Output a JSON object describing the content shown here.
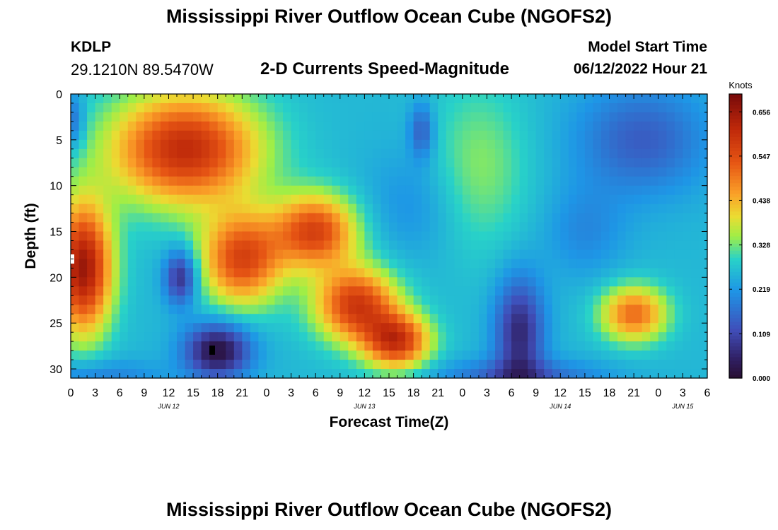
{
  "header": {
    "title": "Mississippi River Outflow Ocean Cube (NGOFS2)",
    "station_id": "KDLP",
    "station_coords": "29.1210N  89.5470W",
    "plot_title": "2-D Currents Speed-Magnitude",
    "model_start_label": "Model Start Time",
    "model_start_value": "06/12/2022 Hour 21"
  },
  "footer": {
    "title": "Mississippi River Outflow Ocean Cube (NGOFS2)"
  },
  "chart_data": {
    "type": "heatmap",
    "title": "2-D Currents Speed-Magnitude",
    "xlabel": "Forecast Time(Z)",
    "ylabel": "Depth (ft)",
    "x_range_hours": [
      0,
      78
    ],
    "ylim": [
      0,
      31
    ],
    "x_tick_labels": [
      "0",
      "3",
      "6",
      "9",
      "12",
      "15",
      "18",
      "21",
      "0",
      "3",
      "6",
      "9",
      "12",
      "15",
      "18",
      "21",
      "0",
      "3",
      "6",
      "9",
      "12",
      "15",
      "18",
      "21",
      "0",
      "3",
      "6"
    ],
    "y_tick_labels": [
      "0",
      "5",
      "10",
      "15",
      "20",
      "25",
      "30"
    ],
    "date_labels": [
      {
        "label": "JUN 12",
        "hour": 12
      },
      {
        "label": "JUN 13",
        "hour": 36
      },
      {
        "label": "JUN 14",
        "hour": 60
      },
      {
        "label": "JUN 15",
        "hour": 75
      }
    ],
    "colorbar": {
      "unit": "Knots",
      "min": 0.0,
      "max": 0.7,
      "tick_labels": [
        "0.000",
        "0.109",
        "0.219",
        "0.328",
        "0.438",
        "0.547",
        "0.656"
      ]
    },
    "speed_features_knots": [
      {
        "hour": 1,
        "depth": 20,
        "value": 0.62
      },
      {
        "hour": 14,
        "depth": 6,
        "value": 0.58
      },
      {
        "hour": 4,
        "depth": 30,
        "value": 0.21
      },
      {
        "hour": 13.5,
        "depth": 20,
        "value": 0.05
      },
      {
        "hour": 17.5,
        "depth": 28,
        "value": 0.0
      },
      {
        "hour": 30,
        "depth": 15,
        "value": 0.55
      },
      {
        "hour": 34,
        "depth": 23,
        "value": 0.56
      },
      {
        "hour": 39,
        "depth": 27,
        "value": 0.56
      },
      {
        "hour": 42,
        "depth": 5,
        "value": 0.12
      },
      {
        "hour": 50,
        "depth": 8,
        "value": 0.34
      },
      {
        "hour": 55,
        "depth": 26,
        "value": 0.06
      },
      {
        "hour": 70,
        "depth": 6,
        "value": 0.1
      },
      {
        "hour": 69,
        "depth": 24,
        "value": 0.5
      },
      {
        "hour": 66,
        "depth": 14,
        "value": 0.2
      }
    ]
  }
}
